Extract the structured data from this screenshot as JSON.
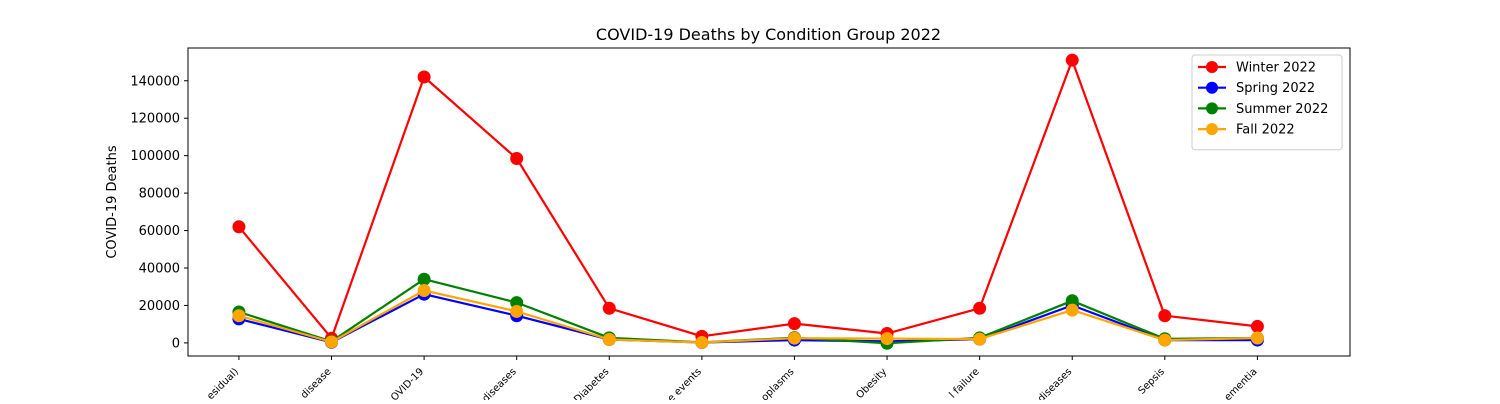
{
  "chart_data": {
    "type": "line",
    "title": "COVID-19 Deaths by Condition Group 2022",
    "xlabel": "",
    "ylabel": "COVID-19 Deaths",
    "ylim": [
      -7000,
      157500
    ],
    "yticks": [
      0,
      20000,
      40000,
      60000,
      80000,
      100000,
      120000,
      140000
    ],
    "grid": false,
    "legend_position": "top-right",
    "categories": [
      "esidual)",
      "disease",
      "OVID-19",
      "diseases",
      "Diabetes",
      "e events",
      "oplasms",
      "Obesity",
      "l failure",
      "diseases",
      "Sepsis",
      "ementia"
    ],
    "series": [
      {
        "name": "Winter 2022",
        "color": "#ff0000",
        "values": [
          62000,
          2500,
          142000,
          98500,
          18500,
          3500,
          10300,
          5000,
          18500,
          151000,
          14500,
          8800
        ]
      },
      {
        "name": "Spring 2022",
        "color": "#0000ff",
        "values": [
          12800,
          300,
          26000,
          14500,
          1800,
          200,
          1500,
          800,
          2000,
          20000,
          1500,
          1500
        ]
      },
      {
        "name": "Summer 2022",
        "color": "#008000",
        "values": [
          16500,
          800,
          34000,
          21500,
          2700,
          300,
          2800,
          -200,
          2700,
          22500,
          2200,
          2600
        ]
      },
      {
        "name": "Fall 2022",
        "color": "#ffa500",
        "values": [
          14500,
          500,
          28000,
          16800,
          1800,
          200,
          2500,
          2300,
          2000,
          17500,
          1500,
          2600
        ]
      }
    ]
  }
}
